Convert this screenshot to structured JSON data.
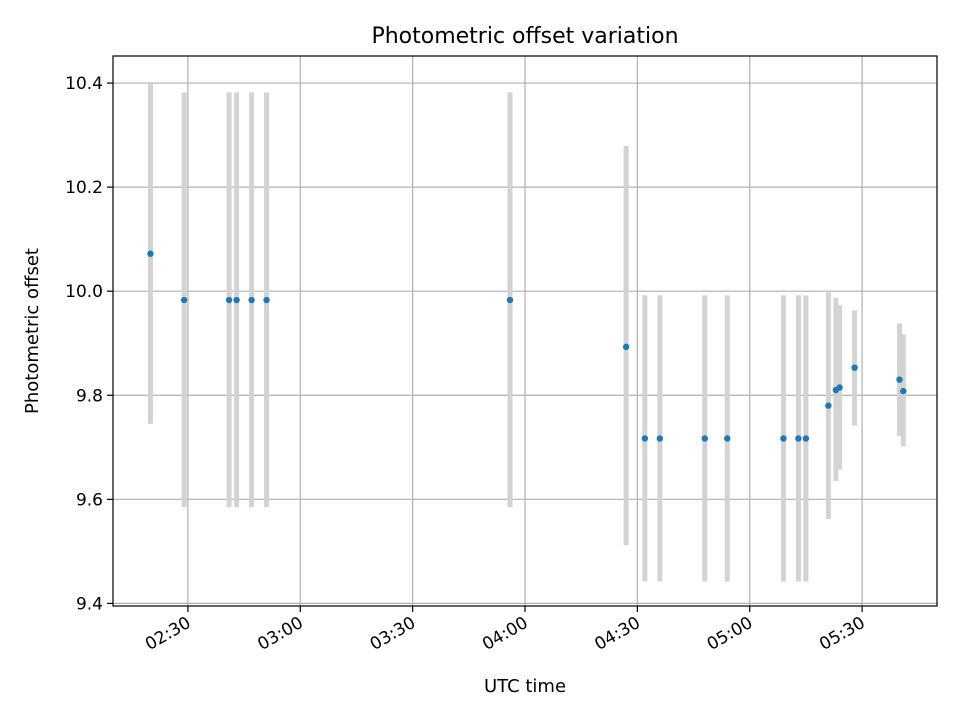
{
  "chart_data": {
    "type": "scatter",
    "title": "Photometric offset variation",
    "xlabel": "UTC time",
    "ylabel": "Photometric offset",
    "xlim": [
      "02:10",
      "05:50"
    ],
    "ylim": [
      9.395,
      10.452
    ],
    "grid": true,
    "xticks": [
      "02:30",
      "03:00",
      "03:30",
      "04:00",
      "04:30",
      "05:00",
      "05:30"
    ],
    "yticks": [
      "9.4",
      "9.6",
      "9.8",
      "10.0",
      "10.2",
      "10.4"
    ],
    "colors": {
      "point": "#1f77b4",
      "errorbar": "#d3d3d3",
      "grid": "#b0b0b0"
    },
    "points": [
      {
        "x": "02:20",
        "y": 10.072,
        "yerr": [
          9.745,
          10.402
        ]
      },
      {
        "x": "02:29",
        "y": 9.983,
        "yerr": [
          9.585,
          10.382
        ]
      },
      {
        "x": "02:41",
        "y": 9.983,
        "yerr": [
          9.585,
          10.382
        ]
      },
      {
        "x": "02:43",
        "y": 9.983,
        "yerr": [
          9.585,
          10.382
        ]
      },
      {
        "x": "02:47",
        "y": 9.983,
        "yerr": [
          9.585,
          10.382
        ]
      },
      {
        "x": "02:51",
        "y": 9.983,
        "yerr": [
          9.585,
          10.382
        ]
      },
      {
        "x": "03:56",
        "y": 9.983,
        "yerr": [
          9.585,
          10.382
        ]
      },
      {
        "x": "04:27",
        "y": 9.893,
        "yerr": [
          9.512,
          10.279
        ]
      },
      {
        "x": "04:32",
        "y": 9.717,
        "yerr": [
          9.442,
          9.992
        ]
      },
      {
        "x": "04:36",
        "y": 9.717,
        "yerr": [
          9.442,
          9.992
        ]
      },
      {
        "x": "04:48",
        "y": 9.717,
        "yerr": [
          9.442,
          9.992
        ]
      },
      {
        "x": "04:54",
        "y": 9.717,
        "yerr": [
          9.442,
          9.992
        ]
      },
      {
        "x": "05:09",
        "y": 9.717,
        "yerr": [
          9.442,
          9.992
        ]
      },
      {
        "x": "05:13",
        "y": 9.717,
        "yerr": [
          9.442,
          9.992
        ]
      },
      {
        "x": "05:15",
        "y": 9.717,
        "yerr": [
          9.442,
          9.992
        ]
      },
      {
        "x": "05:21",
        "y": 9.78,
        "yerr": [
          9.562,
          9.998
        ]
      },
      {
        "x": "05:23",
        "y": 9.81,
        "yerr": [
          9.635,
          9.987
        ]
      },
      {
        "x": "05:24",
        "y": 9.815,
        "yerr": [
          9.657,
          9.973
        ]
      },
      {
        "x": "05:28",
        "y": 9.853,
        "yerr": [
          9.742,
          9.963
        ]
      },
      {
        "x": "05:40",
        "y": 9.83,
        "yerr": [
          9.722,
          9.938
        ]
      },
      {
        "x": "05:41",
        "y": 9.808,
        "yerr": [
          9.702,
          9.917
        ]
      }
    ]
  }
}
